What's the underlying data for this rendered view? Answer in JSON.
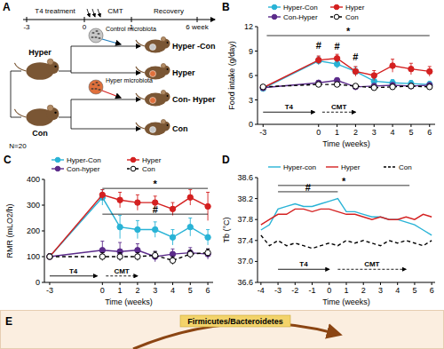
{
  "chart_data": [
    {
      "type": "line",
      "panel_label": "B",
      "x_label": "Time (weeks)",
      "y_label": "Food intake (g/day)",
      "x": [
        -3,
        0,
        1,
        2,
        3,
        4,
        5,
        6
      ],
      "xlim": [
        -3.3,
        6.3
      ],
      "xticks": [
        -3,
        0,
        1,
        2,
        3,
        4,
        5,
        6
      ],
      "ylim": [
        0,
        12
      ],
      "yticks": [
        0,
        3,
        6,
        9,
        12
      ],
      "grid": false,
      "legend": "top",
      "series": [
        {
          "name": "Hyper-Con",
          "color": "#29b3d6",
          "marker": "circle",
          "line_style": "solid",
          "values": [
            4.4,
            7.8,
            7.4,
            6.5,
            5.3,
            5.1,
            5.0,
            4.9
          ],
          "errors": [
            0.3,
            0.5,
            0.5,
            0.5,
            0.4,
            0.4,
            0.4,
            0.4
          ]
        },
        {
          "name": "Hyper",
          "color": "#d42020",
          "marker": "circle",
          "line_style": "solid",
          "values": [
            4.5,
            7.9,
            8.1,
            6.5,
            6.0,
            7.2,
            6.8,
            6.5
          ],
          "errors": [
            0.3,
            0.5,
            0.5,
            0.6,
            0.6,
            0.8,
            0.7,
            0.6
          ]
        },
        {
          "name": "Con-Hyper",
          "color": "#5b2b8a",
          "marker": "circle",
          "line_style": "solid",
          "values": [
            4.5,
            5.1,
            5.4,
            4.6,
            4.7,
            4.8,
            4.7,
            4.8
          ],
          "errors": [
            0.2,
            0.3,
            0.3,
            0.3,
            0.3,
            0.3,
            0.3,
            0.3
          ]
        },
        {
          "name": "Con",
          "color": "#000000",
          "marker": "open-circle",
          "line_style": "dashed",
          "values": [
            4.6,
            4.9,
            4.9,
            4.7,
            4.5,
            4.6,
            4.7,
            4.6
          ],
          "errors": [
            0.2,
            0.2,
            0.2,
            0.2,
            0.2,
            0.2,
            0.2,
            0.2
          ]
        }
      ],
      "annotations": [
        {
          "type": "bracket",
          "text": "*",
          "x_range": [
            -2.8,
            6
          ],
          "y": 10.9
        },
        {
          "type": "mark",
          "text": "#",
          "x": 0,
          "y": 9.3
        },
        {
          "type": "mark",
          "text": "#",
          "x": 1,
          "y": 9.2
        },
        {
          "type": "mark",
          "text": "#",
          "x": 2,
          "y": 7.9
        },
        {
          "type": "arrow",
          "text": "T4",
          "x_range": [
            -3,
            -0.2
          ],
          "y": 1.5,
          "line_style": "solid"
        },
        {
          "type": "arrow",
          "text": "CMT",
          "x_range": [
            0.2,
            2
          ],
          "y": 1.5,
          "line_style": "dashed"
        }
      ]
    },
    {
      "type": "line",
      "panel_label": "C",
      "x_label": "Time (weeks)",
      "y_label": "RMR (mLO2/h)",
      "x": [
        -3,
        0,
        1,
        2,
        3,
        4,
        5,
        6
      ],
      "xlim": [
        -3.3,
        6.3
      ],
      "xticks": [
        -3,
        0,
        1,
        2,
        3,
        4,
        5,
        6
      ],
      "ylim": [
        0,
        400
      ],
      "yticks": [
        0,
        100,
        200,
        300,
        400
      ],
      "grid": false,
      "legend": "top",
      "series": [
        {
          "name": "Hyper-Con",
          "color": "#29b3d6",
          "marker": "circle",
          "line_style": "solid",
          "values": [
            100,
            330,
            215,
            205,
            205,
            175,
            215,
            175
          ],
          "errors": [
            10,
            30,
            45,
            35,
            30,
            30,
            35,
            30
          ]
        },
        {
          "name": "Hyper",
          "color": "#d42020",
          "marker": "circle",
          "line_style": "solid",
          "values": [
            100,
            340,
            320,
            310,
            310,
            285,
            330,
            295
          ],
          "errors": [
            10,
            20,
            30,
            30,
            25,
            25,
            30,
            55
          ]
        },
        {
          "name": "Con-hyper",
          "color": "#5b2b8a",
          "marker": "circle",
          "line_style": "solid",
          "values": [
            100,
            125,
            120,
            125,
            100,
            110,
            115,
            110
          ],
          "errors": [
            10,
            35,
            35,
            25,
            20,
            20,
            20,
            20
          ]
        },
        {
          "name": "Con",
          "color": "#000000",
          "marker": "open-circle",
          "line_style": "dashed",
          "values": [
            100,
            100,
            100,
            100,
            105,
            85,
            110,
            115
          ],
          "errors": [
            10,
            15,
            15,
            15,
            15,
            15,
            15,
            15
          ]
        }
      ],
      "annotations": [
        {
          "type": "bracket",
          "text": "*",
          "x_range": [
            0,
            6
          ],
          "y": 365
        },
        {
          "type": "bracket",
          "text": "#",
          "x_range": [
            0,
            6
          ],
          "y": 265
        },
        {
          "type": "arrow",
          "text": "T4",
          "x_range": [
            -3,
            -0.3
          ],
          "y": 25,
          "line_style": "solid"
        },
        {
          "type": "arrow",
          "text": "CMT",
          "x_range": [
            0.2,
            2
          ],
          "y": 25,
          "line_style": "dashed"
        }
      ]
    },
    {
      "type": "line",
      "panel_label": "D",
      "x_label": "Time (weeks)",
      "y_label": "Tb (°C)",
      "x": [
        -4,
        -3.5,
        -3,
        -2.5,
        -2,
        -1.5,
        -1,
        -0.5,
        0,
        0.5,
        1,
        1.5,
        2,
        2.5,
        3,
        3.5,
        4,
        4.5,
        5,
        5.5,
        6
      ],
      "xlim": [
        -4.2,
        6.2
      ],
      "xticks": [
        -4,
        -3,
        -2,
        -1,
        0,
        1,
        2,
        3,
        4,
        5,
        6
      ],
      "ylim": [
        36.6,
        38.6
      ],
      "yticks": [
        36.6,
        {
          "value": 37,
          "label": "37.0"
        },
        37.4,
        37.8,
        38.2,
        38.6
      ],
      "grid": false,
      "legend": "top",
      "series": [
        {
          "name": "Hyper-con",
          "color": "#29b3d6",
          "marker": "none",
          "line_style": "solid",
          "values": [
            37.6,
            37.7,
            38.0,
            38.05,
            38.1,
            38.05,
            38.05,
            38.1,
            38.15,
            38.2,
            37.95,
            37.95,
            37.9,
            37.85,
            37.85,
            37.8,
            37.8,
            37.75,
            37.7,
            37.6,
            37.5
          ]
        },
        {
          "name": "Hyper",
          "color": "#d42020",
          "marker": "none",
          "line_style": "solid",
          "values": [
            37.7,
            37.8,
            37.9,
            37.9,
            38.0,
            38.0,
            37.95,
            38.0,
            38.0,
            37.95,
            37.9,
            37.9,
            37.85,
            37.8,
            37.85,
            37.8,
            37.8,
            37.85,
            37.8,
            37.9,
            37.85
          ]
        },
        {
          "name": "Con",
          "color": "#000000",
          "marker": "none",
          "line_style": "dashed",
          "values": [
            37.5,
            37.3,
            37.4,
            37.3,
            37.35,
            37.3,
            37.25,
            37.3,
            37.35,
            37.3,
            37.4,
            37.35,
            37.4,
            37.35,
            37.3,
            37.4,
            37.35,
            37.4,
            37.35,
            37.3,
            37.4
          ]
        }
      ],
      "annotations": [
        {
          "type": "bracket",
          "text": "*",
          "x_range": [
            -3,
            4.7
          ],
          "y": 38.45
        },
        {
          "type": "bracket",
          "text": "#",
          "x_range": [
            -3,
            0.5
          ],
          "y": 38.33
        },
        {
          "type": "arrow",
          "text": "T4",
          "x_range": [
            -3,
            0
          ],
          "y": 36.85,
          "line_style": "solid"
        },
        {
          "type": "arrow",
          "text": "CMT",
          "x_range": [
            0.5,
            4.5
          ],
          "y": 36.85,
          "line_style": "dashed"
        }
      ]
    }
  ],
  "diagram": {
    "panel_label": "A",
    "timeline": {
      "ticks": [
        "-3",
        "0",
        "1",
        "6 week"
      ],
      "phases": [
        "T4 treatment",
        "CMT",
        "Recovery"
      ]
    },
    "source": {
      "label": "N=20",
      "groups": [
        "Hyper",
        "Con"
      ]
    },
    "microbiota": [
      "Control microbiota",
      "Hyper microbiota"
    ],
    "recipients": [
      "Hyper -Con",
      "Hyper",
      "Con- Hyper",
      "Con"
    ]
  },
  "panel_e": {
    "panel_label": "E",
    "label": "Firmicutes/Bacteroidetes"
  }
}
